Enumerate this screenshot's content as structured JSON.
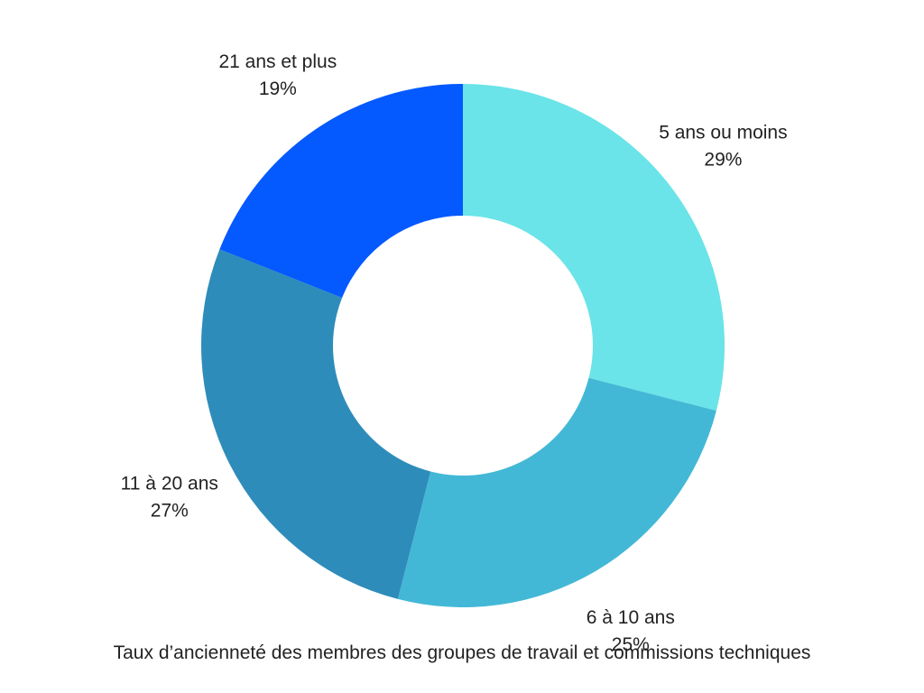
{
  "chart_data": {
    "type": "pie",
    "donut": true,
    "title": "Taux d’ancienneté des membres des groupes de travail et commissions techniques",
    "categories": [
      "5 ans ou moins",
      "6 à 10 ans",
      "11 à 20 ans",
      "21 ans et plus"
    ],
    "values": [
      29,
      25,
      27,
      19
    ],
    "value_labels": [
      "29%",
      "25%",
      "27%",
      "19%"
    ],
    "unit": "%",
    "colors": [
      "#6ae4e8",
      "#43b8d6",
      "#2e8cba",
      "#0459ff"
    ],
    "legend": "none",
    "labels_position": "outside"
  }
}
